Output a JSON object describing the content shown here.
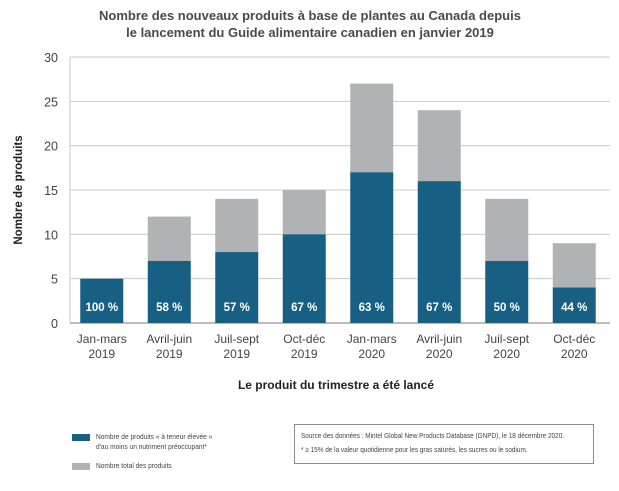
{
  "chart_data": {
    "type": "bar",
    "stacked": true,
    "title": "Nombre des nouveaux produits à base de plantes au Canada depuis le lancement du Guide alimentaire canadien en janvier 2019",
    "title_lines": [
      "Nombre des nouveaux produits à base de plantes au Canada depuis",
      "le lancement du Guide alimentaire canadien en janvier 2019"
    ],
    "xlabel": "Le produit du trimestre a été lancé",
    "ylabel": "Nombre de produits",
    "ylim": [
      0,
      30
    ],
    "yticks": [
      0,
      5,
      10,
      15,
      20,
      25,
      30
    ],
    "grid": true,
    "categories": [
      [
        "Jan-mars",
        "2019"
      ],
      [
        "Avril-juin",
        "2019"
      ],
      [
        "Juil-sept",
        "2019"
      ],
      [
        "Oct-déc",
        "2019"
      ],
      [
        "Jan-mars",
        "2020"
      ],
      [
        "Avril-juin",
        "2020"
      ],
      [
        "Juil-sept",
        "2020"
      ],
      [
        "Oct-déc",
        "2020"
      ]
    ],
    "series": [
      {
        "name": "Nombre de produits « à teneur élevée » d'au moins un nutriment préoccupant*",
        "color": "#176083",
        "values": [
          5,
          7,
          8,
          10,
          17,
          16,
          7,
          4
        ]
      },
      {
        "name": "Nombre total des produits",
        "color": "#b1b2b4",
        "values": [
          5,
          12,
          14,
          15,
          27,
          24,
          14,
          9
        ]
      }
    ],
    "data_labels": [
      "100 %",
      "58 %",
      "57 %",
      "67 %",
      "63 %",
      "67 %",
      "50 %",
      "44 %"
    ],
    "legend_position": "bottom-left"
  },
  "legend": [
    {
      "lines": [
        "Nombre de produits « à teneur élevée »",
        "d'au moins un nutriment préoccupant*"
      ],
      "color": "#176083"
    },
    {
      "lines": [
        "Nombre total des produits"
      ],
      "color": "#b1b2b4"
    }
  ],
  "source": {
    "line1": "Source des données : Mintel Global New Products Database (GNPD), le 18 décembre 2020.",
    "line2": "*  ≥ 15% de la valeur quotidienne pour les gras saturés, les sucres ou le sodium."
  }
}
